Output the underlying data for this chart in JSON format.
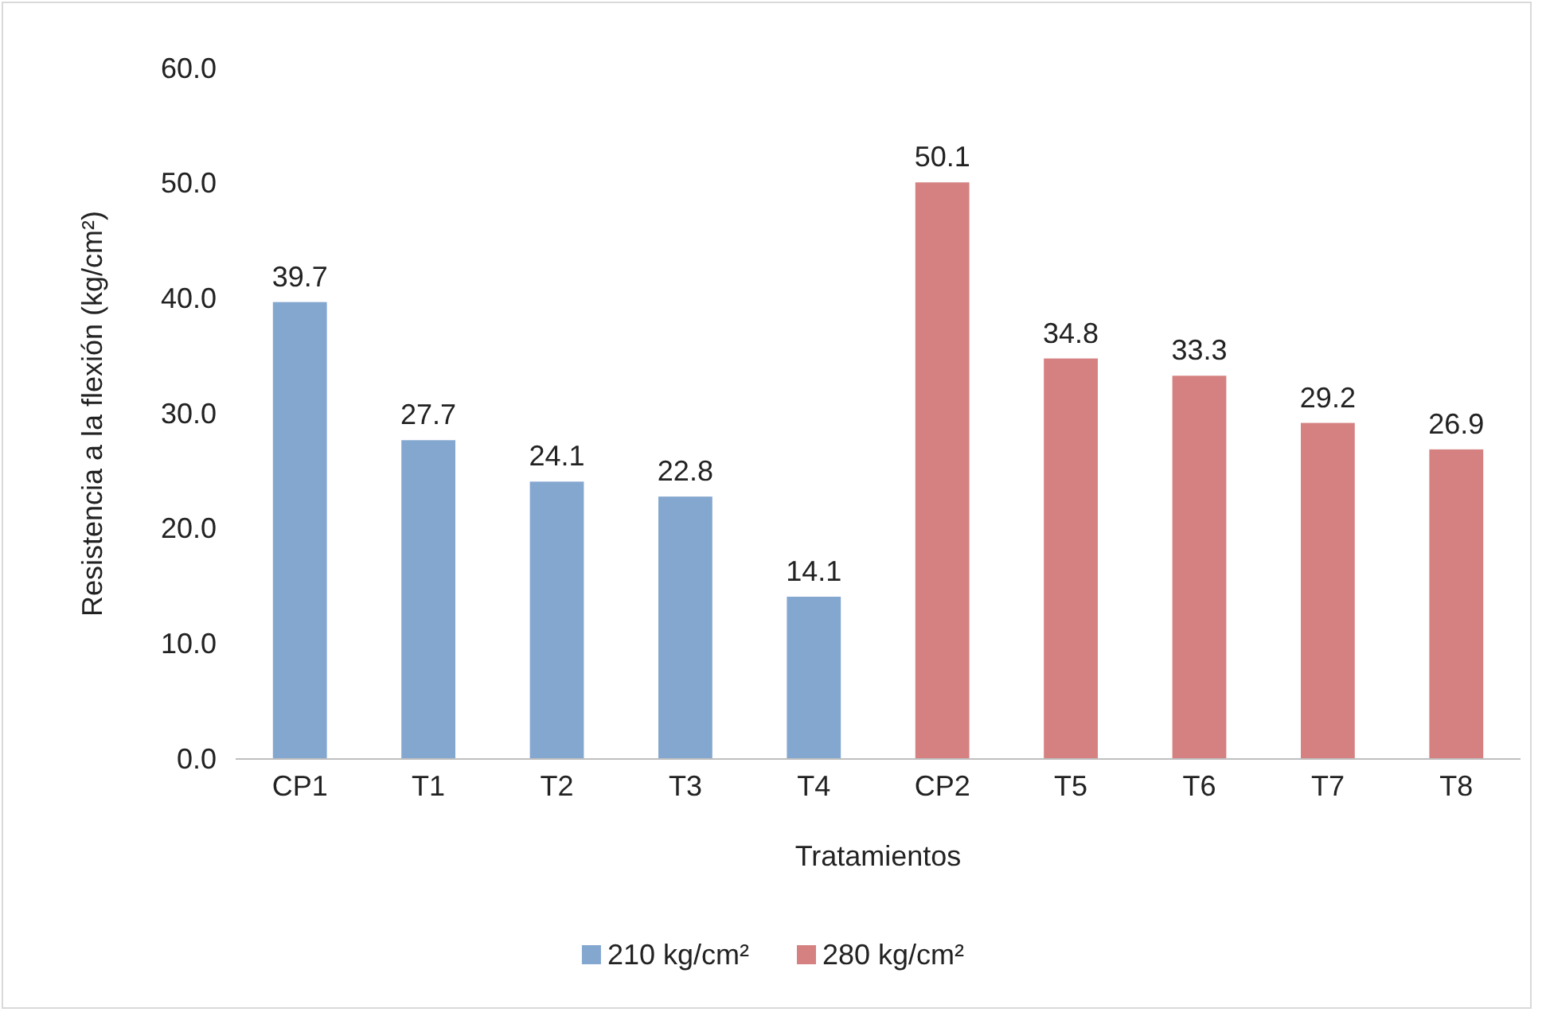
{
  "chart_data": {
    "type": "bar",
    "xlabel": "Tratamientos",
    "ylabel": "Resistencia a la flexión (kg/cm²)",
    "categories": [
      "CP1",
      "T1",
      "T2",
      "T3",
      "T4",
      "CP2",
      "T5",
      "T6",
      "T7",
      "T8"
    ],
    "series": [
      {
        "name": "210 kg/cm²",
        "color": "#84a7d0",
        "values": [
          39.7,
          27.7,
          24.1,
          22.8,
          14.1,
          null,
          null,
          null,
          null,
          null
        ]
      },
      {
        "name": "280 kg/cm²",
        "color": "#d58181",
        "values": [
          null,
          null,
          null,
          null,
          null,
          50.1,
          34.8,
          33.3,
          29.2,
          26.9
        ]
      }
    ],
    "ylim": [
      0,
      60
    ],
    "yticks": [
      {
        "value": 0,
        "label": "0.0"
      },
      {
        "value": 10,
        "label": "10.0"
      },
      {
        "value": 20,
        "label": "20.0"
      },
      {
        "value": 30,
        "label": "30.0"
      },
      {
        "value": 40,
        "label": "40.0"
      },
      {
        "value": 50,
        "label": "50.0"
      },
      {
        "value": 60,
        "label": "60.0"
      }
    ],
    "data_labels": true,
    "legend": "bottom",
    "grid": false
  }
}
